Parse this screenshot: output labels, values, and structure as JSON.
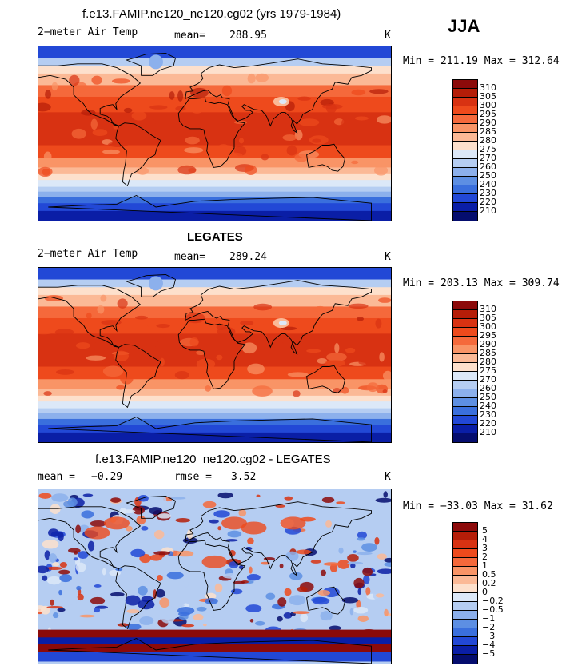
{
  "season": "JJA",
  "panels": [
    {
      "title": "f.e13.FAMIP.ne120_ne120.cg02 (yrs 1979-1984)",
      "left_label": "2−meter Air Temp",
      "mid_label": "mean=",
      "mid_value": "288.95",
      "units": "K",
      "minmax": "Min = 211.19 Max = 312.64",
      "type": "absolute",
      "legend": {
        "labels": [
          "310",
          "305",
          "300",
          "295",
          "290",
          "285",
          "280",
          "275",
          "270",
          "260",
          "250",
          "240",
          "230",
          "220",
          "210"
        ],
        "colors": [
          "#8c0a0a",
          "#b51d08",
          "#d83212",
          "#ee4a1c",
          "#f5693b",
          "#f99466",
          "#fbb996",
          "#fde0cc",
          "#dce8f8",
          "#b5cdf2",
          "#8cb0ec",
          "#5d8fe3",
          "#3a6fdd",
          "#2248d6",
          "#0a1ea6",
          "#050d6e"
        ]
      }
    },
    {
      "title": "LEGATES",
      "left_label": "2−meter Air Temp",
      "mid_label": "mean=",
      "mid_value": "289.24",
      "units": "K",
      "minmax": "Min = 203.13 Max = 309.74",
      "type": "absolute",
      "legend": {
        "labels": [
          "310",
          "305",
          "300",
          "295",
          "290",
          "285",
          "280",
          "275",
          "270",
          "260",
          "250",
          "240",
          "230",
          "220",
          "210"
        ],
        "colors": [
          "#8c0a0a",
          "#b51d08",
          "#d83212",
          "#ee4a1c",
          "#f5693b",
          "#f99466",
          "#fbb996",
          "#fde0cc",
          "#dce8f8",
          "#b5cdf2",
          "#8cb0ec",
          "#5d8fe3",
          "#3a6fdd",
          "#2248d6",
          "#0a1ea6",
          "#050d6e"
        ]
      }
    },
    {
      "title": "f.e13.FAMIP.ne120_ne120.cg02 - LEGATES",
      "left_label": "mean =",
      "left_value": "−0.29",
      "mid_label": "rmse =",
      "mid_value": "3.52",
      "units": "K",
      "minmax": "Min = −33.03 Max =  31.62",
      "type": "difference",
      "legend": {
        "labels": [
          "5",
          "4",
          "3",
          "2",
          "1",
          "0.5",
          "0.2",
          "0",
          "−0.2",
          "−0.5",
          "−1",
          "−2",
          "−3",
          "−4",
          "−5"
        ],
        "colors": [
          "#8c0a0a",
          "#b51d08",
          "#d83212",
          "#ee4a1c",
          "#f5693b",
          "#f99466",
          "#fbb996",
          "#fde0cc",
          "#dce8f8",
          "#b5cdf2",
          "#8cb0ec",
          "#5d8fe3",
          "#3a6fdd",
          "#2248d6",
          "#0a1ea6",
          "#050d6e"
        ]
      }
    }
  ]
}
